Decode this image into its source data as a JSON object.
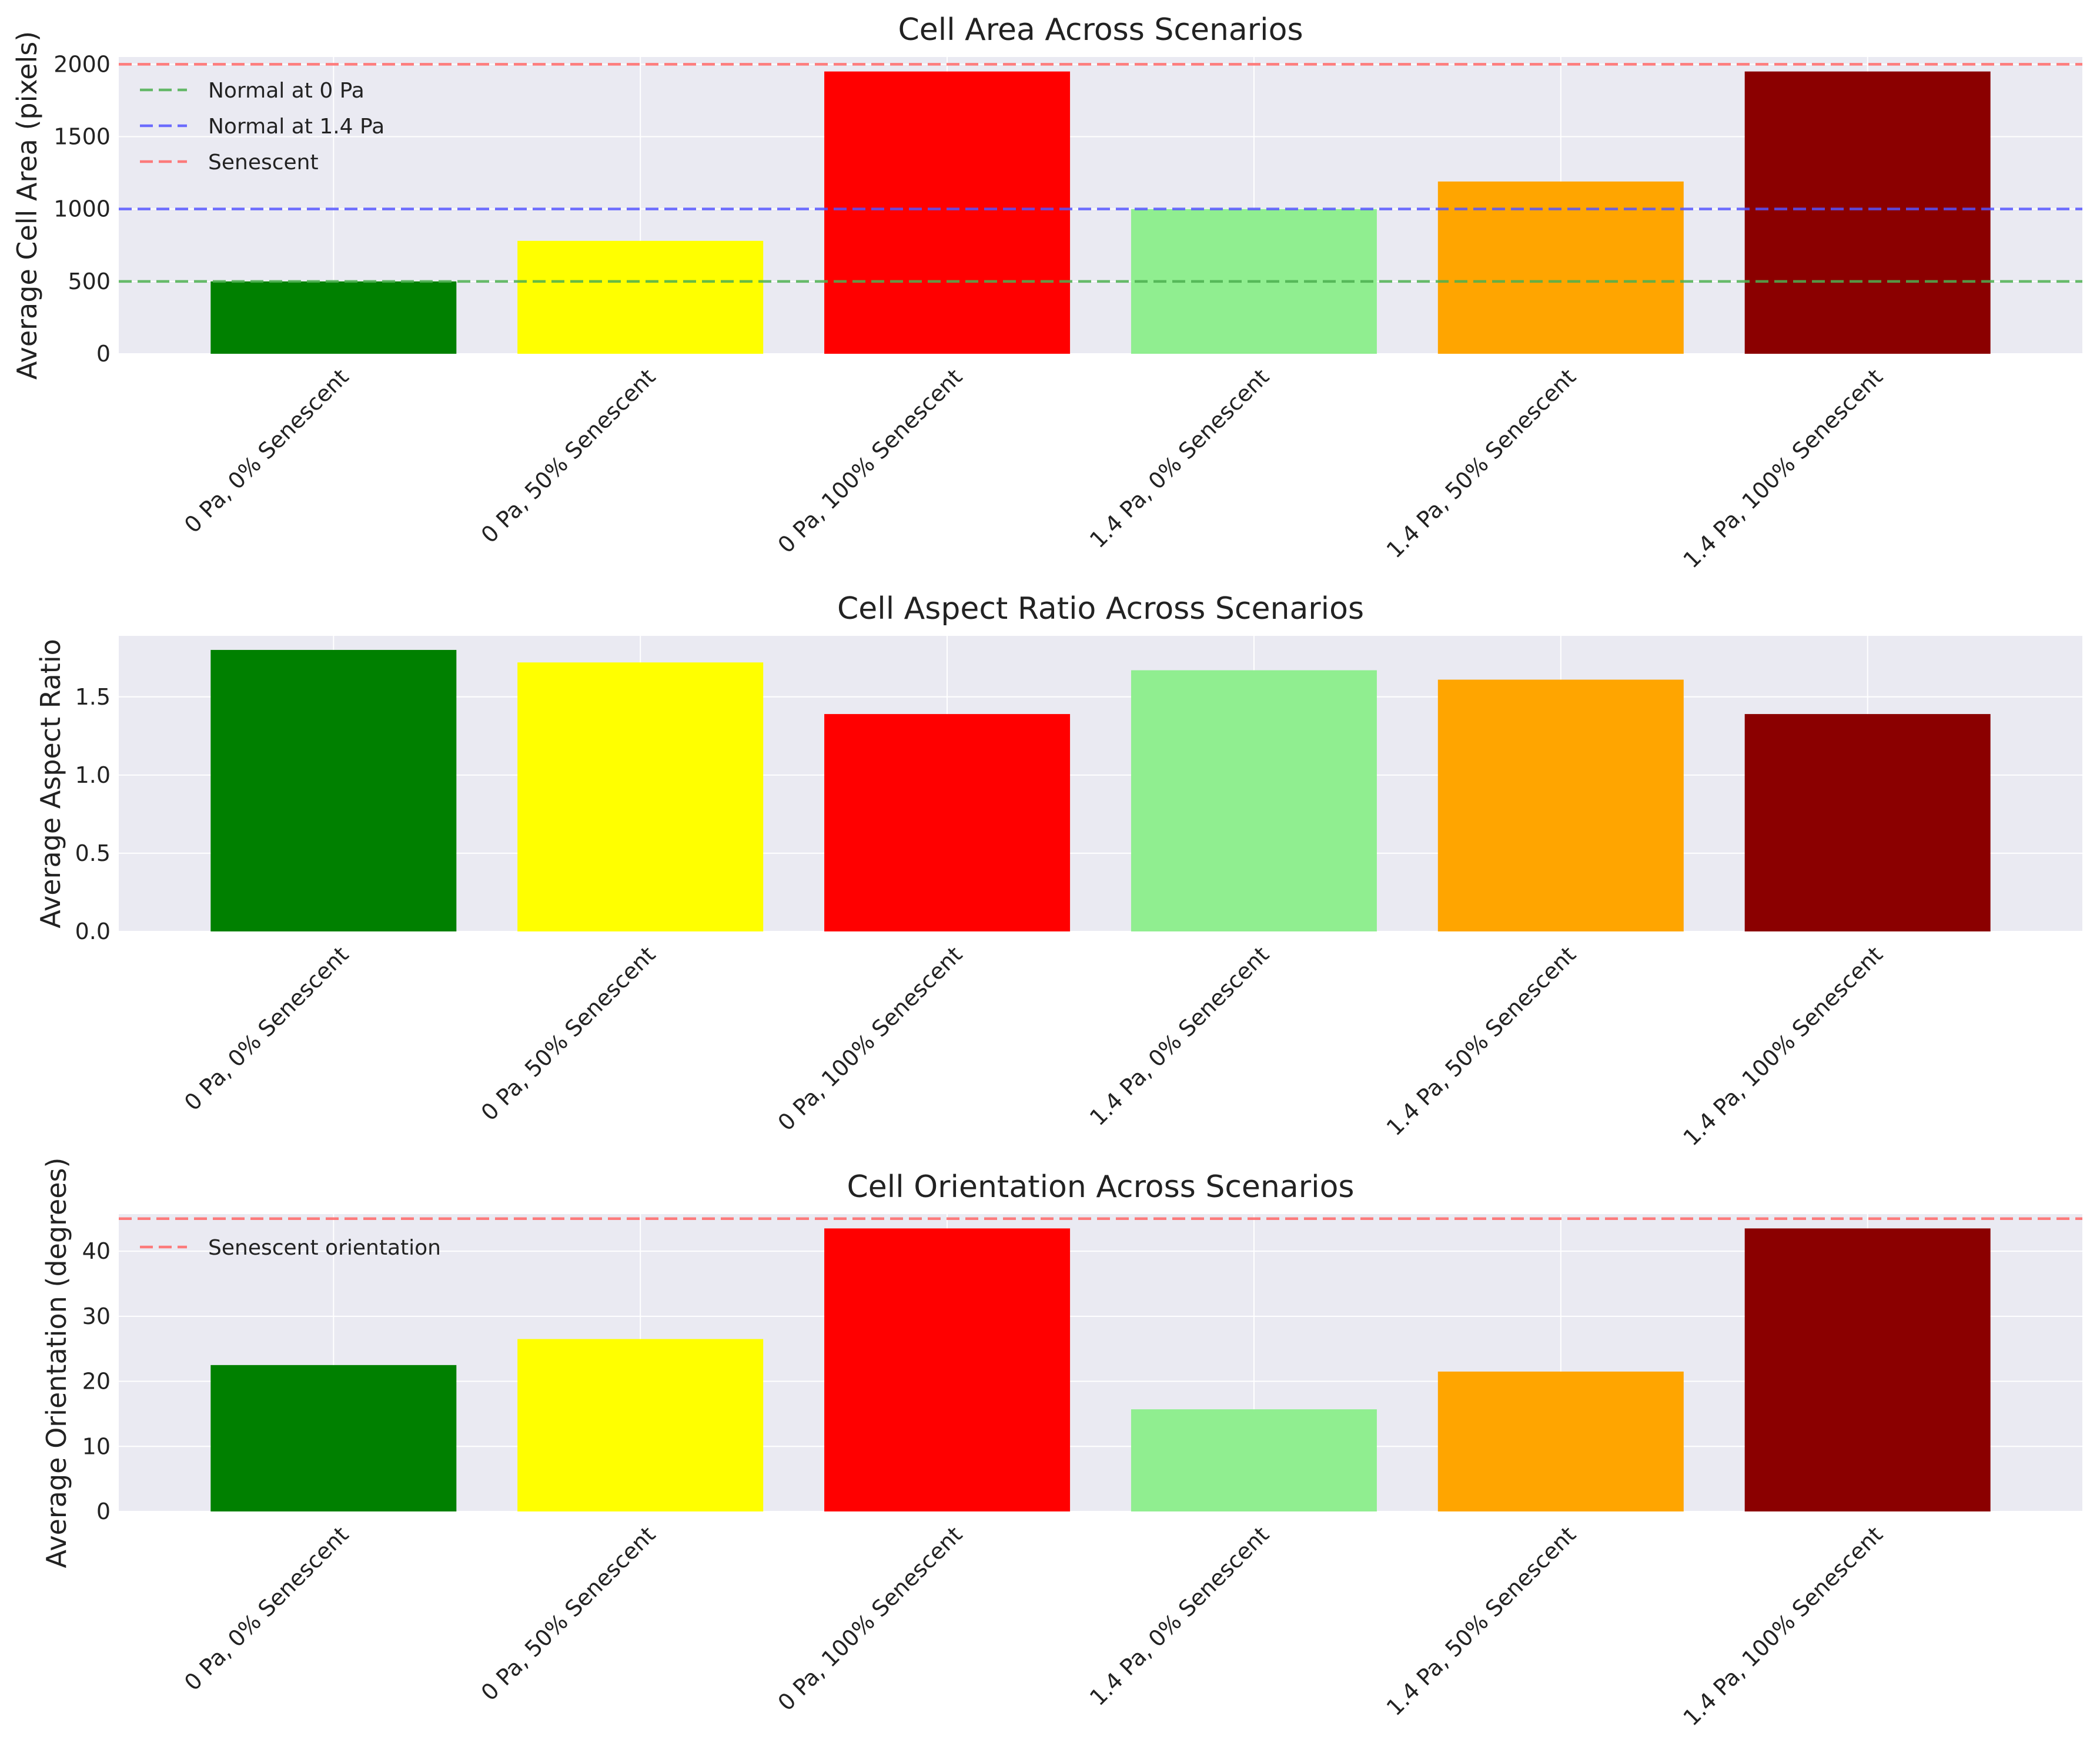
{
  "chart_data": [
    {
      "type": "bar",
      "title": "Cell Area Across Scenarios",
      "xlabel": "",
      "ylabel": "Average Cell Area (pixels)",
      "categories": [
        "0 Pa, 0% Senescent",
        "0 Pa, 50% Senescent",
        "0 Pa, 100% Senescent",
        "1.4 Pa, 0% Senescent",
        "1.4 Pa, 50% Senescent",
        "1.4 Pa, 100% Senescent"
      ],
      "values": [
        500,
        780,
        1950,
        1000,
        1190,
        1950
      ],
      "bar_colors": [
        "#008000",
        "#ffff00",
        "#ff0000",
        "#90ee90",
        "#ffa500",
        "#8b0000"
      ],
      "yticks": [
        0,
        500,
        1000,
        1500,
        2000
      ],
      "ylim": [
        0,
        2050
      ],
      "grid": true,
      "legend_position": "upper left",
      "reference_lines": [
        {
          "label": "Normal at 0 Pa",
          "y": 500,
          "color": "#4caf50",
          "style": "dashed"
        },
        {
          "label": "Normal at 1.4 Pa",
          "y": 1000,
          "color": "#5555ff",
          "style": "dashed"
        },
        {
          "label": "Senescent",
          "y": 2000,
          "color": "#ff6666",
          "style": "dashed"
        }
      ]
    },
    {
      "type": "bar",
      "title": "Cell Aspect Ratio Across Scenarios",
      "xlabel": "",
      "ylabel": "Average Aspect Ratio",
      "categories": [
        "0 Pa, 0% Senescent",
        "0 Pa, 50% Senescent",
        "0 Pa, 100% Senescent",
        "1.4 Pa, 0% Senescent",
        "1.4 Pa, 50% Senescent",
        "1.4 Pa, 100% Senescent"
      ],
      "values": [
        1.8,
        1.72,
        1.39,
        1.67,
        1.61,
        1.39
      ],
      "bar_colors": [
        "#008000",
        "#ffff00",
        "#ff0000",
        "#90ee90",
        "#ffa500",
        "#8b0000"
      ],
      "yticks": [
        0.0,
        0.5,
        1.0,
        1.5
      ],
      "ytick_decimals": 1,
      "ylim": [
        0,
        1.89
      ],
      "grid": true,
      "reference_lines": []
    },
    {
      "type": "bar",
      "title": "Cell Orientation Across Scenarios",
      "xlabel": "",
      "ylabel": "Average Orientation (degrees)",
      "categories": [
        "0 Pa, 0% Senescent",
        "0 Pa, 50% Senescent",
        "0 Pa, 100% Senescent",
        "1.4 Pa, 0% Senescent",
        "1.4 Pa, 50% Senescent",
        "1.4 Pa, 100% Senescent"
      ],
      "values": [
        22.5,
        26.5,
        43.5,
        15.7,
        21.5,
        43.5
      ],
      "bar_colors": [
        "#008000",
        "#ffff00",
        "#ff0000",
        "#90ee90",
        "#ffa500",
        "#8b0000"
      ],
      "yticks": [
        0,
        10,
        20,
        30,
        40
      ],
      "ylim": [
        0,
        45.7
      ],
      "grid": true,
      "legend_position": "upper left",
      "reference_lines": [
        {
          "label": "Senescent orientation",
          "y": 45,
          "color": "#ff6666",
          "style": "dashed"
        }
      ]
    }
  ],
  "colors": {
    "axes_background": "#eaeaf2",
    "grid": "#ffffff",
    "text": "#222222"
  }
}
